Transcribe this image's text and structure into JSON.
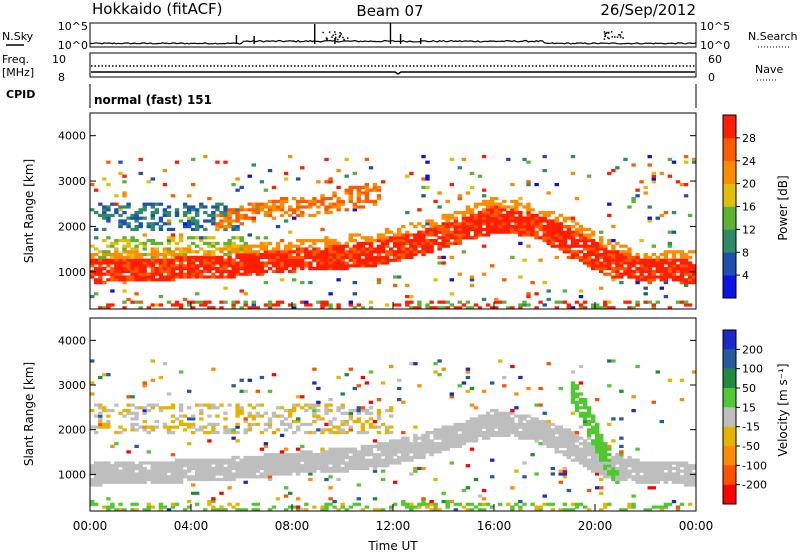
{
  "header": {
    "station": "Hokkaido (fitACF)",
    "beam": "Beam 07",
    "date": "26/Sep/2012"
  },
  "panels": {
    "noise": {
      "left_label": "N.Sky",
      "right_label": "N.Search",
      "left_ticks": [
        "10^5",
        "10^0"
      ],
      "right_ticks": [
        "10^5",
        "10^0"
      ]
    },
    "freq": {
      "left_label_1": "Freq.",
      "left_label_2": "[MHz]",
      "left_ticks": [
        "10",
        "8"
      ],
      "right_label": "Nave",
      "right_ticks": [
        "60",
        "0"
      ]
    },
    "cpid": {
      "left_label": "CPID",
      "value_text": "normal (fast) 151"
    }
  },
  "colors": {
    "red": "#ff2a00",
    "orange": "#ff9000",
    "yellow": "#e8c000",
    "ground_grey": "#bdbdbd",
    "green": "#44cc22",
    "dark_green": "#1a8a3a",
    "blue": "#1030d0"
  },
  "chart_data": [
    {
      "type": "heatmap",
      "name": "power",
      "ylabel": "Slant Range [km]",
      "ylim": [
        180,
        4500
      ],
      "yticks": [
        "1000",
        "2000",
        "3000",
        "4000"
      ],
      "xlim_hours": [
        0,
        24
      ],
      "colorbar": {
        "label": "Power [dB]",
        "ticks": [
          "4",
          "8",
          "12",
          "16",
          "20",
          "24",
          "28"
        ],
        "colors": [
          "#0a14e6",
          "#1e50b4",
          "#2d8c64",
          "#5ab432",
          "#e1be0a",
          "#ff8c00",
          "#ff5a00",
          "#ff1e00"
        ]
      },
      "main_band_km": [
        {
          "t": 0,
          "lo": 750,
          "hi": 1300
        },
        {
          "t": 2,
          "lo": 800,
          "hi": 1300
        },
        {
          "t": 5,
          "lo": 850,
          "hi": 1350
        },
        {
          "t": 8,
          "lo": 1000,
          "hi": 1500
        },
        {
          "t": 11,
          "lo": 1100,
          "hi": 1650
        },
        {
          "t": 13,
          "lo": 1350,
          "hi": 1900
        },
        {
          "t": 14.5,
          "lo": 1600,
          "hi": 2150
        },
        {
          "t": 16,
          "lo": 1850,
          "hi": 2450
        },
        {
          "t": 17.5,
          "lo": 1800,
          "hi": 2300
        },
        {
          "t": 19,
          "lo": 1350,
          "hi": 2000
        },
        {
          "t": 20.5,
          "lo": 900,
          "hi": 1500
        },
        {
          "t": 22,
          "lo": 800,
          "hi": 1300
        },
        {
          "t": 24,
          "lo": 750,
          "hi": 1250
        }
      ],
      "upper_band_km": [
        {
          "t": 5,
          "lo": 1900,
          "hi": 2300
        },
        {
          "t": 7,
          "lo": 2150,
          "hi": 2600
        },
        {
          "t": 9,
          "lo": 2250,
          "hi": 2700
        },
        {
          "t": 11,
          "lo": 2450,
          "hi": 2950
        }
      ]
    },
    {
      "type": "heatmap",
      "name": "velocity",
      "ylabel": "Slant Range [km]",
      "ylim": [
        180,
        4500
      ],
      "yticks": [
        "1000",
        "2000",
        "3000",
        "4000"
      ],
      "xlabel": "Time UT",
      "xticks": [
        "00:00",
        "04:00",
        "08:00",
        "12:00",
        "16:00",
        "20:00",
        "00:00"
      ],
      "colorbar": {
        "label": "Velocity [m s⁻¹]",
        "ticks": [
          "200",
          "100",
          "50",
          "15",
          "-15",
          "-50",
          "-100",
          "-200"
        ],
        "colors": [
          "#1e28c8",
          "#285aa0",
          "#1e8c3c",
          "#50c832",
          "#bebebe",
          "#e6b400",
          "#ff8c00",
          "#ff5000",
          "#ff0000"
        ]
      },
      "ground_band_km": [
        {
          "t": 0,
          "lo": 750,
          "hi": 1300
        },
        {
          "t": 2,
          "lo": 800,
          "hi": 1300
        },
        {
          "t": 5,
          "lo": 850,
          "hi": 1350
        },
        {
          "t": 8,
          "lo": 1000,
          "hi": 1500
        },
        {
          "t": 11,
          "lo": 1100,
          "hi": 1650
        },
        {
          "t": 13,
          "lo": 1350,
          "hi": 1900
        },
        {
          "t": 14.5,
          "lo": 1600,
          "hi": 2150
        },
        {
          "t": 16,
          "lo": 1850,
          "hi": 2450
        },
        {
          "t": 17.5,
          "lo": 1800,
          "hi": 2300
        },
        {
          "t": 19,
          "lo": 1350,
          "hi": 2000
        },
        {
          "t": 20.5,
          "lo": 900,
          "hi": 1500
        },
        {
          "t": 22,
          "lo": 800,
          "hi": 1300
        },
        {
          "t": 24,
          "lo": 750,
          "hi": 1250
        }
      ],
      "green_streak_km": [
        {
          "t": 19.2,
          "lo": 2500,
          "hi": 3100
        },
        {
          "t": 19.8,
          "lo": 1800,
          "hi": 2500
        },
        {
          "t": 20.4,
          "lo": 1100,
          "hi": 1700
        },
        {
          "t": 20.8,
          "lo": 800,
          "hi": 1100
        }
      ]
    }
  ]
}
